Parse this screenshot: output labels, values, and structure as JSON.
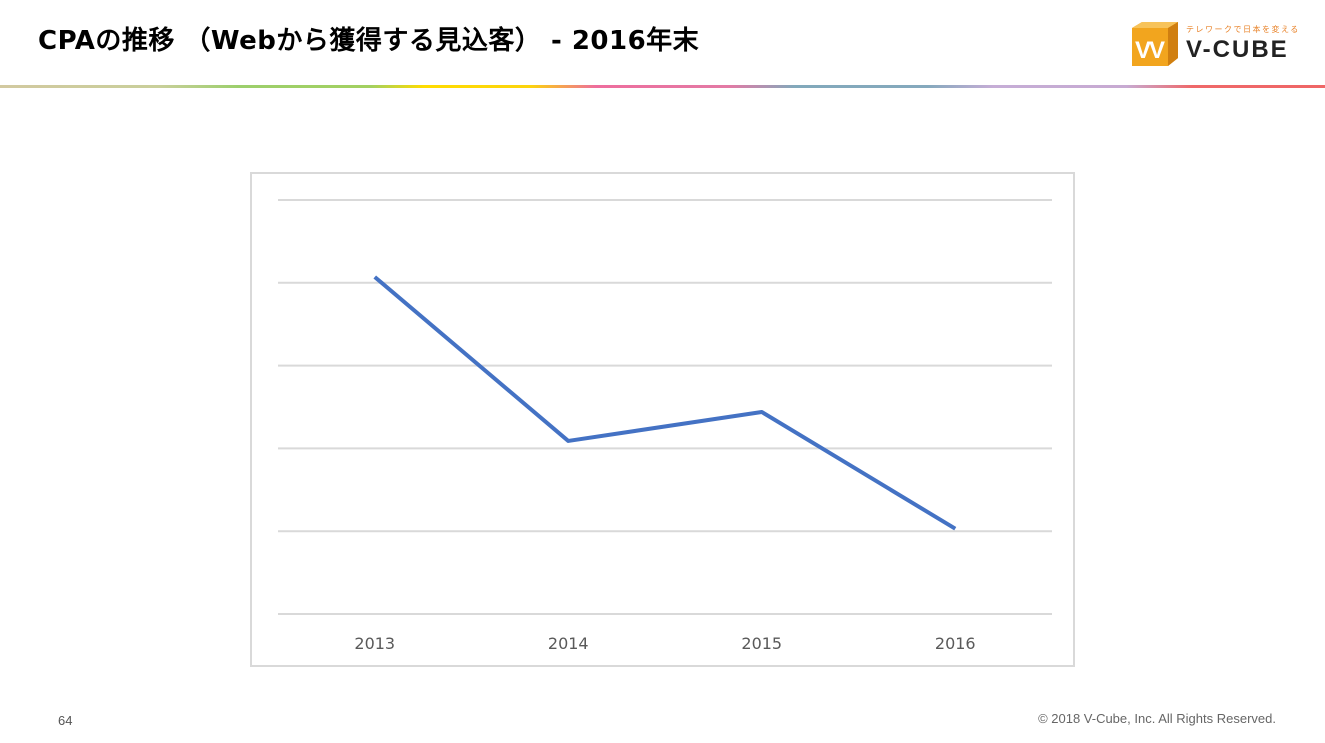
{
  "header": {
    "title": "CPAの推移 （Webから獲得する見込客） - 2016年末",
    "logo": {
      "tagline": "テレワークで日本を変える",
      "name": "V-CUBE",
      "mark": "VV"
    }
  },
  "chart_data": {
    "type": "line",
    "title": "",
    "xlabel": "",
    "ylabel": "",
    "categories": [
      "2013",
      "2014",
      "2015",
      "2016"
    ],
    "series": [
      {
        "values": [
          4.07,
          2.09,
          2.44,
          1.03
        ],
        "color": "#4472c4"
      }
    ],
    "ylim": [
      0,
      5
    ],
    "y_tick_labels_shown": false,
    "grid": true
  },
  "footer": {
    "page_number": "64",
    "copyright": "© 2018 V-Cube, Inc. All Rights Reserved."
  }
}
